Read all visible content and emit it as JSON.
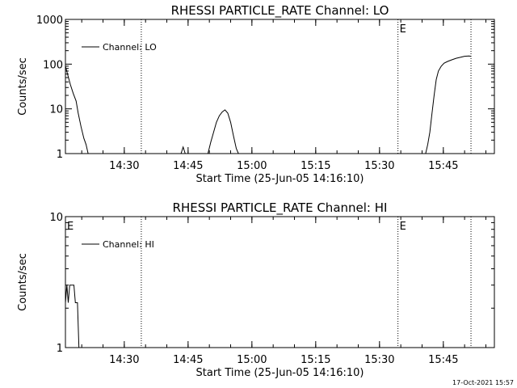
{
  "chart_data": [
    {
      "type": "line",
      "title": "RHESSI PARTICLE_RATE Channel: LO",
      "xlabel": "Start Time (25-Jun-05 14:16:10)",
      "ylabel": "Counts/sec",
      "y_scale": "log",
      "ylim": [
        1,
        1000
      ],
      "xlim": [
        "14:16:10",
        "15:57:00"
      ],
      "x_ticks": [
        "14:30",
        "14:45",
        "15:00",
        "15:15",
        "15:30",
        "15:45"
      ],
      "y_ticks": [
        "1",
        "10",
        "100",
        "1000"
      ],
      "legend": {
        "placement": "top-left",
        "entries": [
          "Channel: LO"
        ]
      },
      "markers": [
        {
          "label": "E",
          "x": "15:34:20"
        },
        {
          "label": "",
          "x": "15:51:30"
        },
        {
          "label": "",
          "x": "14:34:00"
        }
      ],
      "series": [
        {
          "name": "Channel: LO",
          "points": [
            [
              "14:16:10",
              90
            ],
            [
              "14:16:40",
              60
            ],
            [
              "14:17:20",
              35
            ],
            [
              "14:18:00",
              22
            ],
            [
              "14:18:40",
              15
            ],
            [
              "14:19:10",
              8
            ],
            [
              "14:19:50",
              4
            ],
            [
              "14:20:30",
              2.2
            ],
            [
              "14:21:00",
              1.6
            ],
            [
              "14:21:30",
              1
            ],
            [
              "14:43:20",
              1
            ],
            [
              "14:43:50",
              1.4
            ],
            [
              "14:44:20",
              1
            ],
            [
              "14:49:40",
              1
            ],
            [
              "14:50:20",
              1.8
            ],
            [
              "14:51:00",
              3
            ],
            [
              "14:51:40",
              5
            ],
            [
              "14:52:20",
              7
            ],
            [
              "14:53:00",
              8.5
            ],
            [
              "14:53:40",
              9.5
            ],
            [
              "14:54:20",
              8
            ],
            [
              "14:55:00",
              5
            ],
            [
              "14:55:40",
              2.5
            ],
            [
              "14:56:20",
              1.3
            ],
            [
              "14:56:50",
              1
            ],
            [
              "15:40:50",
              1
            ],
            [
              "15:41:20",
              1.6
            ],
            [
              "15:41:50",
              3
            ],
            [
              "15:42:20",
              8
            ],
            [
              "15:42:50",
              20
            ],
            [
              "15:43:20",
              45
            ],
            [
              "15:43:50",
              70
            ],
            [
              "15:44:30",
              90
            ],
            [
              "15:45:10",
              105
            ],
            [
              "15:46:00",
              115
            ],
            [
              "15:47:00",
              125
            ],
            [
              "15:48:00",
              135
            ],
            [
              "15:49:00",
              142
            ],
            [
              "15:50:00",
              150
            ],
            [
              "15:51:00",
              152
            ],
            [
              "15:51:30",
              150
            ]
          ]
        }
      ]
    },
    {
      "type": "line",
      "title": "RHESSI PARTICLE_RATE Channel: HI",
      "xlabel": "Start Time (25-Jun-05 14:16:10)",
      "ylabel": "Counts/sec",
      "y_scale": "log",
      "ylim": [
        1,
        10
      ],
      "xlim": [
        "14:16:10",
        "15:57:00"
      ],
      "x_ticks": [
        "14:30",
        "14:45",
        "15:00",
        "15:15",
        "15:30",
        "15:45"
      ],
      "y_ticks": [
        "1",
        "10"
      ],
      "legend": {
        "placement": "top-left",
        "entries": [
          "Channel: HI"
        ]
      },
      "markers": [
        {
          "label": "E",
          "x": "14:16:10"
        },
        {
          "label": "E",
          "x": "15:34:20"
        },
        {
          "label": "",
          "x": "15:51:30"
        },
        {
          "label": "",
          "x": "14:34:00"
        }
      ],
      "series": [
        {
          "name": "Channel: HI",
          "points": [
            [
              "14:16:10",
              2.2
            ],
            [
              "14:16:30",
              3
            ],
            [
              "14:16:50",
              2.2
            ],
            [
              "14:17:10",
              3
            ],
            [
              "14:18:10",
              3
            ],
            [
              "14:18:30",
              2.2
            ],
            [
              "14:19:00",
              2.2
            ],
            [
              "14:19:20",
              1
            ]
          ]
        }
      ]
    }
  ],
  "timestamp": "17-Oct-2021 15:57"
}
